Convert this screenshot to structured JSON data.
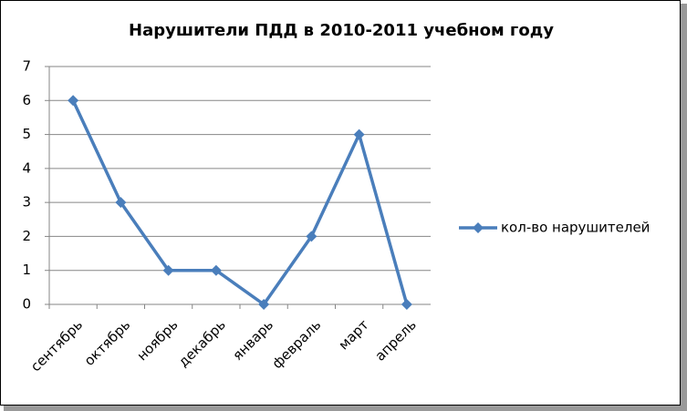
{
  "chart_data": {
    "type": "line",
    "title": "Нарушители ПДД в 2010-2011 учебном году",
    "categories": [
      "сентябрь",
      "октябрь",
      "ноябрь",
      "декабрь",
      "январь",
      "февраль",
      "март",
      "апрель"
    ],
    "series": [
      {
        "name": "кол-во нарушителей",
        "color": "#4a7ebb",
        "values": [
          6,
          3,
          1,
          1,
          0,
          2,
          5,
          0
        ]
      }
    ],
    "ylim": [
      0,
      7
    ],
    "yticks": [
      0,
      1,
      2,
      3,
      4,
      5,
      6,
      7
    ],
    "grid": true,
    "legend": "right"
  }
}
